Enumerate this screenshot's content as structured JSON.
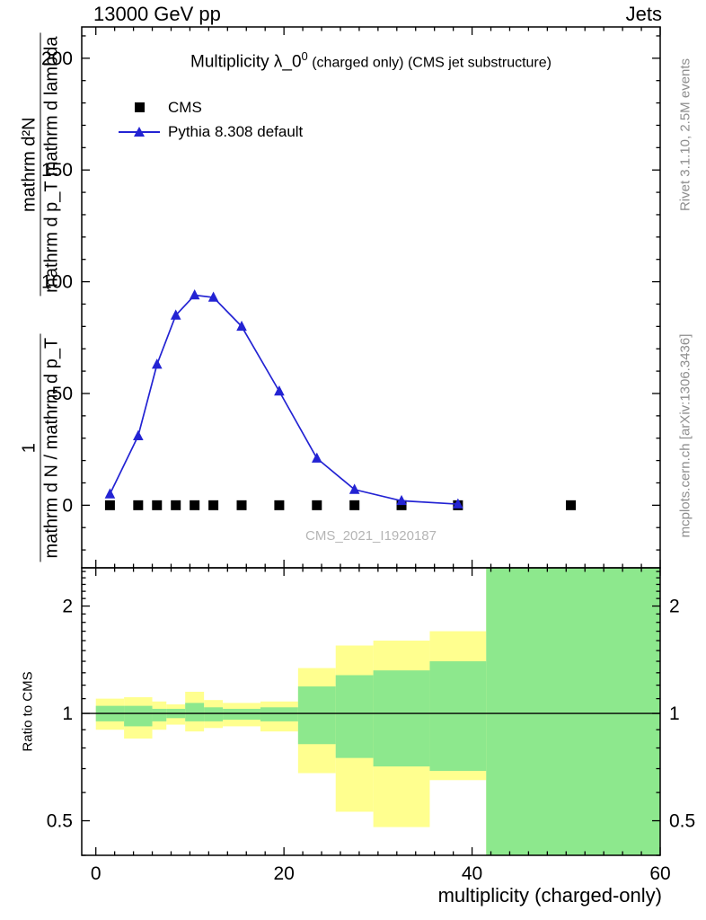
{
  "header": {
    "left": "13000 GeV pp",
    "right": "Jets"
  },
  "title": {
    "main": "Multiplicity λ_0",
    "sup": "0",
    "detail": " (charged only) (CMS jet substructure)"
  },
  "legend": [
    {
      "label": "CMS",
      "marker": "square",
      "color": "#000000"
    },
    {
      "label": "Pythia 8.308 default",
      "marker": "triangle-line",
      "color": "#2323d3"
    }
  ],
  "axis_label": {
    "frac1_num": "1",
    "frac1_den": "mathrm d N / mathrm d p_T",
    "frac2_num": "mathrm d²N",
    "frac2_den": "mathrm d p_T mathrm d lambda"
  },
  "ratio_label": "Ratio to CMS",
  "xlabel": "multiplicity (charged-only)",
  "watermark": "CMS_2021_I1920187",
  "side_notes": {
    "top": "Rivet 3.1.10,  2.5M events",
    "bottom": "mcplots.cern.ch [arXiv:1306.3436]"
  },
  "chart_data": {
    "type": "line",
    "title": "Multiplicity λ_0^0 (charged only) (CMS jet substructure)",
    "xlabel": "multiplicity (charged-only)",
    "ylabel": "1 / (mathrm d N / mathrm d p_T) · mathrm d²N / (mathrm d p_T mathrm d lambda)",
    "xlim": [
      -1.5,
      60
    ],
    "ylim": [
      -28,
      214
    ],
    "xticks": [
      0,
      20,
      40,
      60
    ],
    "x_minor_step": 2,
    "yticks": [
      0,
      50,
      100,
      150,
      200
    ],
    "y_minor_step": 10,
    "grid": false,
    "legend_position": "top-left",
    "series": [
      {
        "name": "CMS",
        "marker": "square",
        "color": "#000000",
        "line": false,
        "x": [
          1.5,
          4.5,
          6.5,
          8.5,
          10.5,
          12.5,
          15.5,
          19.5,
          23.5,
          27.5,
          32.5,
          38.5,
          50.5
        ],
        "y": [
          0,
          0,
          0,
          0,
          0,
          0,
          0,
          0,
          0,
          0,
          0,
          0,
          0
        ]
      },
      {
        "name": "Pythia 8.308 default",
        "marker": "triangle",
        "color": "#2323d3",
        "line": true,
        "x": [
          1.5,
          4.5,
          6.5,
          8.5,
          10.5,
          12.5,
          15.5,
          19.5,
          23.5,
          27.5,
          32.5,
          38.5
        ],
        "y": [
          5,
          31,
          63,
          85,
          94,
          93,
          80,
          51,
          21,
          7,
          2,
          0.5
        ]
      }
    ],
    "ratio": {
      "ylabel": "Ratio to CMS",
      "scale": "log",
      "ylim": [
        0.4,
        2.56
      ],
      "yticks": [
        0.5,
        1,
        2
      ],
      "minor_ticks": [
        0.4,
        0.6,
        0.7,
        0.8,
        0.9,
        1.1,
        1.2,
        1.3,
        1.4,
        1.5,
        1.6,
        1.7,
        1.8,
        1.9,
        2.1,
        2.2,
        2.3,
        2.4,
        2.5
      ],
      "reference_line": 1,
      "band_colors": {
        "outer": "#ffff8f",
        "inner": "#8de88d"
      },
      "bands": [
        {
          "x": [
            0,
            3
          ],
          "outer": [
            0.9,
            1.1
          ],
          "inner": [
            0.95,
            1.05
          ]
        },
        {
          "x": [
            3,
            6
          ],
          "outer": [
            0.85,
            1.11
          ],
          "inner": [
            0.92,
            1.05
          ]
        },
        {
          "x": [
            6,
            7.5
          ],
          "outer": [
            0.9,
            1.08
          ],
          "inner": [
            0.95,
            1.03
          ]
        },
        {
          "x": [
            7.5,
            9.5
          ],
          "outer": [
            0.93,
            1.06
          ],
          "inner": [
            0.97,
            1.03
          ]
        },
        {
          "x": [
            9.5,
            11.5
          ],
          "outer": [
            0.89,
            1.15
          ],
          "inner": [
            0.95,
            1.07
          ]
        },
        {
          "x": [
            11.5,
            13.5
          ],
          "outer": [
            0.91,
            1.09
          ],
          "inner": [
            0.95,
            1.04
          ]
        },
        {
          "x": [
            13.5,
            17.5
          ],
          "outer": [
            0.92,
            1.07
          ],
          "inner": [
            0.96,
            1.03
          ]
        },
        {
          "x": [
            17.5,
            21.5
          ],
          "outer": [
            0.89,
            1.08
          ],
          "inner": [
            0.95,
            1.04
          ]
        },
        {
          "x": [
            21.5,
            25.5
          ],
          "outer": [
            0.68,
            1.34
          ],
          "inner": [
            0.82,
            1.19
          ]
        },
        {
          "x": [
            25.5,
            29.5
          ],
          "outer": [
            0.53,
            1.55
          ],
          "inner": [
            0.75,
            1.28
          ]
        },
        {
          "x": [
            29.5,
            35.5
          ],
          "outer": [
            0.48,
            1.6
          ],
          "inner": [
            0.71,
            1.32
          ]
        },
        {
          "x": [
            35.5,
            41.5
          ],
          "outer": [
            0.65,
            1.7
          ],
          "inner": [
            0.69,
            1.4
          ]
        },
        {
          "x": [
            41.5,
            60
          ],
          "outer": [
            0.4,
            2.56
          ],
          "inner": [
            0.4,
            2.56
          ]
        }
      ]
    }
  }
}
